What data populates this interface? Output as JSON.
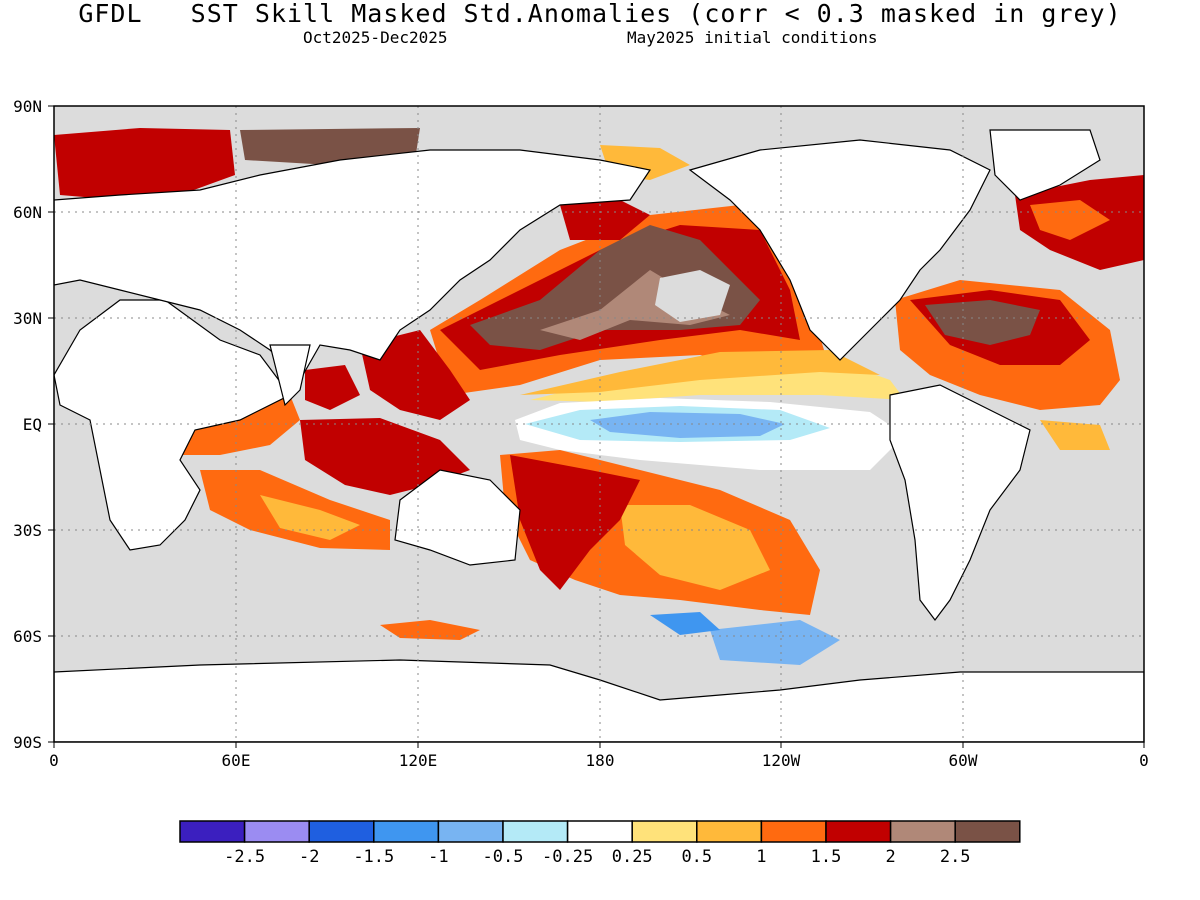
{
  "title": "GFDL   SST Skill Masked Std.Anomalies (corr < 0.3 masked in grey)",
  "subtitle_left": "Oct2025-Dec2025",
  "subtitle_right": "May2025 initial conditions",
  "axes": {
    "lat_ticks": [
      "90N",
      "60N",
      "30N",
      "EQ",
      "30S",
      "60S",
      "90S"
    ],
    "lon_ticks": [
      "0",
      "60E",
      "120E",
      "180",
      "120W",
      "60W",
      "0"
    ],
    "grid": "dotted"
  },
  "colors": {
    "land": "#ffffff",
    "masked_ocean": "#dcdcdc",
    "coast": "#000000"
  },
  "legend": {
    "bins": [
      {
        "color": "#3b1fbf"
      },
      {
        "color": "#9b8cf2"
      },
      {
        "color": "#1f5fe0"
      },
      {
        "color": "#3f96f0"
      },
      {
        "color": "#78b4f2"
      },
      {
        "color": "#b4eaf7"
      },
      {
        "color": "#ffffff"
      },
      {
        "color": "#ffe27a"
      },
      {
        "color": "#ffb93a"
      },
      {
        "color": "#ff6a10"
      },
      {
        "color": "#c10000"
      },
      {
        "color": "#b08878"
      },
      {
        "color": "#7a5246"
      }
    ],
    "tick_labels": [
      "-2.5",
      "-2",
      "-1.5",
      "-1",
      "-0.5",
      "-0.25",
      "0.25",
      "0.5",
      "1",
      "1.5",
      "2",
      "2.5"
    ]
  }
}
